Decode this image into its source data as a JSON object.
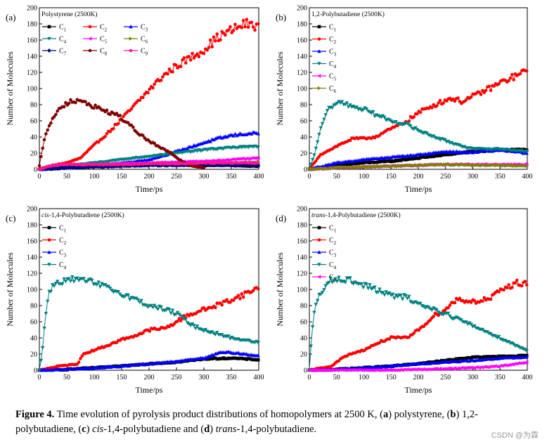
{
  "figure": {
    "caption_label": "Figure 4.",
    "caption_text": "Time evolution of pyrolysis product distributions of homopolymers at 2500 K,",
    "caption_parts": [
      "(",
      "a",
      ") polystyrene,",
      "(",
      "b",
      ") 1,2-polybutadiene, (",
      "c",
      ") ",
      "cis",
      "-1,4-polybutadiene and (",
      "d",
      ") ",
      "trans",
      "-1,4-polybutadiene."
    ],
    "watermark": "CSDN @为霖"
  },
  "chart_data": [
    {
      "type": "line",
      "panel_label": "(a)",
      "title": "Polystyrene (2500K)",
      "xlabel": "Time/ps",
      "ylabel": "Number of Molecules",
      "xlim": [
        0,
        400
      ],
      "ylim": [
        0,
        200
      ],
      "xticks": [
        0,
        50,
        100,
        150,
        200,
        250,
        300,
        350,
        400
      ],
      "yticks": [
        0,
        20,
        40,
        60,
        80,
        100,
        120,
        140,
        160,
        180,
        200
      ],
      "legend_layout": "3-columns top-left",
      "series": [
        {
          "name": "C1",
          "color": "#000000",
          "marker": "square",
          "x": [
            0,
            50,
            100,
            150,
            200,
            250,
            300,
            350,
            400
          ],
          "y": [
            0,
            2,
            4,
            5,
            6,
            6,
            5,
            5,
            4
          ]
        },
        {
          "name": "C2",
          "color": "#ff0000",
          "marker": "circle",
          "x": [
            0,
            25,
            50,
            75,
            100,
            125,
            150,
            175,
            200,
            225,
            250,
            275,
            300,
            325,
            350,
            375,
            400
          ],
          "y": [
            0,
            5,
            8,
            14,
            30,
            45,
            62,
            80,
            98,
            115,
            128,
            138,
            148,
            163,
            172,
            180,
            178
          ]
        },
        {
          "name": "C3",
          "color": "#0000ff",
          "marker": "triangle-up",
          "x": [
            0,
            50,
            100,
            150,
            200,
            250,
            300,
            325,
            350,
            375,
            400
          ],
          "y": [
            0,
            2,
            4,
            8,
            12,
            22,
            33,
            38,
            42,
            44,
            45
          ]
        },
        {
          "name": "C4",
          "color": "#008080",
          "marker": "triangle-down",
          "x": [
            0,
            50,
            100,
            150,
            200,
            250,
            300,
            350,
            400
          ],
          "y": [
            0,
            4,
            8,
            12,
            16,
            20,
            24,
            27,
            28
          ]
        },
        {
          "name": "C5",
          "color": "#ff00ff",
          "marker": "triangle-left",
          "x": [
            0,
            50,
            100,
            150,
            200,
            250,
            300,
            350,
            400
          ],
          "y": [
            0,
            4,
            6,
            7,
            8,
            9,
            10,
            12,
            14
          ]
        },
        {
          "name": "C6",
          "color": "#808000",
          "marker": "triangle-right",
          "x": [
            0,
            50,
            100,
            150,
            200,
            250,
            300,
            350,
            400
          ],
          "y": [
            0,
            2,
            3,
            4,
            5,
            6,
            7,
            8,
            9
          ]
        },
        {
          "name": "C7",
          "color": "#000080",
          "marker": "diamond",
          "x": [
            0,
            50,
            100,
            150,
            200,
            250,
            300,
            350,
            400
          ],
          "y": [
            0,
            2,
            3,
            4,
            5,
            5,
            6,
            5,
            5
          ]
        },
        {
          "name": "C8",
          "color": "#800000",
          "marker": "circle",
          "x": [
            0,
            10,
            25,
            40,
            55,
            70,
            85,
            100,
            120,
            140,
            160,
            180,
            200,
            220,
            240,
            260,
            280,
            300
          ],
          "y": [
            5,
            40,
            65,
            78,
            84,
            84,
            82,
            78,
            72,
            68,
            58,
            45,
            35,
            27,
            20,
            10,
            4,
            2
          ]
        },
        {
          "name": "C9",
          "color": "#ff1493",
          "marker": "circle",
          "x": [
            0,
            25,
            50,
            100,
            150,
            200,
            250,
            300,
            350,
            400
          ],
          "y": [
            0,
            5,
            6,
            6,
            6,
            7,
            7,
            8,
            8,
            8
          ]
        }
      ]
    },
    {
      "type": "line",
      "panel_label": "(b)",
      "title": "1,2-Polybutadiene (2500K)",
      "xlabel": "Time/ps",
      "ylabel": "Number of Molecules",
      "xlim": [
        0,
        400
      ],
      "ylim": [
        0,
        200
      ],
      "xticks": [
        0,
        50,
        100,
        150,
        200,
        250,
        300,
        350,
        400
      ],
      "yticks": [
        0,
        20,
        40,
        60,
        80,
        100,
        120,
        140,
        160,
        180,
        200
      ],
      "legend_layout": "1-column top-left",
      "series": [
        {
          "name": "C1",
          "color": "#000000",
          "marker": "square",
          "x": [
            0,
            50,
            100,
            150,
            200,
            250,
            300,
            350,
            400
          ],
          "y": [
            0,
            5,
            8,
            10,
            14,
            18,
            22,
            24,
            24
          ]
        },
        {
          "name": "C2",
          "color": "#ff0000",
          "marker": "circle",
          "x": [
            0,
            20,
            40,
            60,
            80,
            100,
            120,
            150,
            180,
            200,
            230,
            260,
            280,
            300,
            330,
            360,
            400
          ],
          "y": [
            0,
            18,
            25,
            32,
            38,
            38,
            40,
            50,
            60,
            70,
            80,
            88,
            84,
            90,
            100,
            110,
            122
          ]
        },
        {
          "name": "C3",
          "color": "#0000ff",
          "marker": "triangle-up",
          "x": [
            0,
            50,
            100,
            150,
            200,
            250,
            300,
            350,
            400
          ],
          "y": [
            0,
            8,
            12,
            15,
            18,
            22,
            21,
            24,
            20
          ]
        },
        {
          "name": "C4",
          "color": "#008080",
          "marker": "triangle-down",
          "x": [
            0,
            10,
            20,
            30,
            40,
            50,
            60,
            80,
            100,
            120,
            150,
            180,
            200,
            250,
            300,
            350,
            400
          ],
          "y": [
            0,
            20,
            48,
            68,
            78,
            82,
            82,
            78,
            74,
            68,
            60,
            55,
            48,
            35,
            25,
            25,
            22
          ]
        },
        {
          "name": "C5",
          "color": "#ff00ff",
          "marker": "triangle-left",
          "x": [
            0,
            50,
            100,
            150,
            200,
            250,
            300,
            350,
            400
          ],
          "y": [
            0,
            2,
            3,
            4,
            5,
            6,
            6,
            6,
            6
          ]
        },
        {
          "name": "C6",
          "color": "#808000",
          "marker": "triangle-right",
          "x": [
            0,
            50,
            100,
            150,
            200,
            250,
            300,
            350,
            400
          ],
          "y": [
            0,
            2,
            3,
            4,
            5,
            6,
            5,
            5,
            4
          ]
        }
      ]
    },
    {
      "type": "line",
      "panel_label": "(c)",
      "title_italic": "cis",
      "title_rest": "-1,4-Polybutadiene (2500K)",
      "xlabel": "Time/ps",
      "ylabel": "Number of Molecules",
      "xlim": [
        0,
        400
      ],
      "ylim": [
        0,
        200
      ],
      "xticks": [
        0,
        50,
        100,
        150,
        200,
        250,
        300,
        350,
        400
      ],
      "yticks": [
        0,
        20,
        40,
        60,
        80,
        100,
        120,
        140,
        160,
        180,
        200
      ],
      "legend_layout": "1-column top-left",
      "series": [
        {
          "name": "C1",
          "color": "#000000",
          "marker": "square",
          "x": [
            0,
            50,
            100,
            150,
            200,
            250,
            300,
            350,
            400
          ],
          "y": [
            0,
            1,
            3,
            5,
            8,
            10,
            14,
            15,
            13
          ]
        },
        {
          "name": "C2",
          "color": "#ff0000",
          "marker": "circle",
          "x": [
            0,
            35,
            50,
            70,
            80,
            100,
            130,
            150,
            180,
            200,
            230,
            250,
            270,
            300,
            330,
            360,
            400
          ],
          "y": [
            0,
            5,
            6,
            8,
            20,
            25,
            32,
            38,
            44,
            50,
            52,
            60,
            68,
            75,
            82,
            90,
            102
          ]
        },
        {
          "name": "C3",
          "color": "#0000ff",
          "marker": "triangle-up",
          "x": [
            0,
            50,
            100,
            150,
            200,
            250,
            300,
            330,
            350,
            400
          ],
          "y": [
            0,
            1,
            3,
            5,
            8,
            11,
            15,
            22,
            22,
            18
          ]
        },
        {
          "name": "C4",
          "color": "#008080",
          "marker": "triangle-down",
          "x": [
            0,
            5,
            10,
            15,
            20,
            30,
            40,
            50,
            60,
            80,
            100,
            150,
            200,
            230,
            250,
            280,
            300,
            350,
            400
          ],
          "y": [
            0,
            20,
            60,
            88,
            100,
            108,
            110,
            111,
            112,
            111,
            108,
            95,
            80,
            75,
            70,
            55,
            50,
            40,
            34
          ]
        }
      ]
    },
    {
      "type": "line",
      "panel_label": "(d)",
      "title_italic": "trans",
      "title_rest": "-1,4-Polybutadiene (2500K)",
      "xlabel": "Time/ps",
      "ylabel": "Number of Molecules",
      "xlim": [
        0,
        400
      ],
      "ylim": [
        0,
        200
      ],
      "xticks": [
        0,
        50,
        100,
        150,
        200,
        250,
        300,
        350,
        400
      ],
      "yticks": [
        0,
        20,
        40,
        60,
        80,
        100,
        120,
        140,
        160,
        180,
        200
      ],
      "legend_layout": "1-column top-left",
      "series": [
        {
          "name": "C1",
          "color": "#000000",
          "marker": "square",
          "x": [
            0,
            50,
            100,
            150,
            200,
            250,
            300,
            350,
            400
          ],
          "y": [
            0,
            1,
            3,
            5,
            8,
            12,
            16,
            17,
            18
          ]
        },
        {
          "name": "C2",
          "color": "#ff0000",
          "marker": "circle",
          "x": [
            0,
            40,
            50,
            60,
            75,
            100,
            130,
            150,
            180,
            200,
            230,
            250,
            270,
            300,
            330,
            360,
            380,
            400
          ],
          "y": [
            0,
            5,
            10,
            15,
            20,
            25,
            35,
            40,
            40,
            50,
            68,
            75,
            88,
            85,
            88,
            102,
            108,
            108
          ]
        },
        {
          "name": "C3",
          "color": "#0000ff",
          "marker": "triangle-up",
          "x": [
            0,
            50,
            100,
            150,
            200,
            250,
            300,
            350,
            400
          ],
          "y": [
            0,
            1,
            3,
            5,
            8,
            10,
            12,
            15,
            16
          ]
        },
        {
          "name": "C4",
          "color": "#008080",
          "marker": "triangle-down",
          "x": [
            0,
            5,
            10,
            20,
            30,
            40,
            50,
            60,
            80,
            100,
            130,
            150,
            180,
            200,
            250,
            300,
            350,
            400
          ],
          "y": [
            0,
            50,
            75,
            95,
            105,
            112,
            114,
            113,
            110,
            105,
            98,
            92,
            90,
            82,
            70,
            55,
            40,
            24
          ]
        },
        {
          "name": "C5",
          "color": "#ff00ff",
          "marker": "triangle-left",
          "x": [
            0,
            150,
            200,
            250,
            300,
            350,
            400
          ],
          "y": [
            0,
            0,
            1,
            2,
            3,
            5,
            10
          ]
        }
      ]
    }
  ]
}
